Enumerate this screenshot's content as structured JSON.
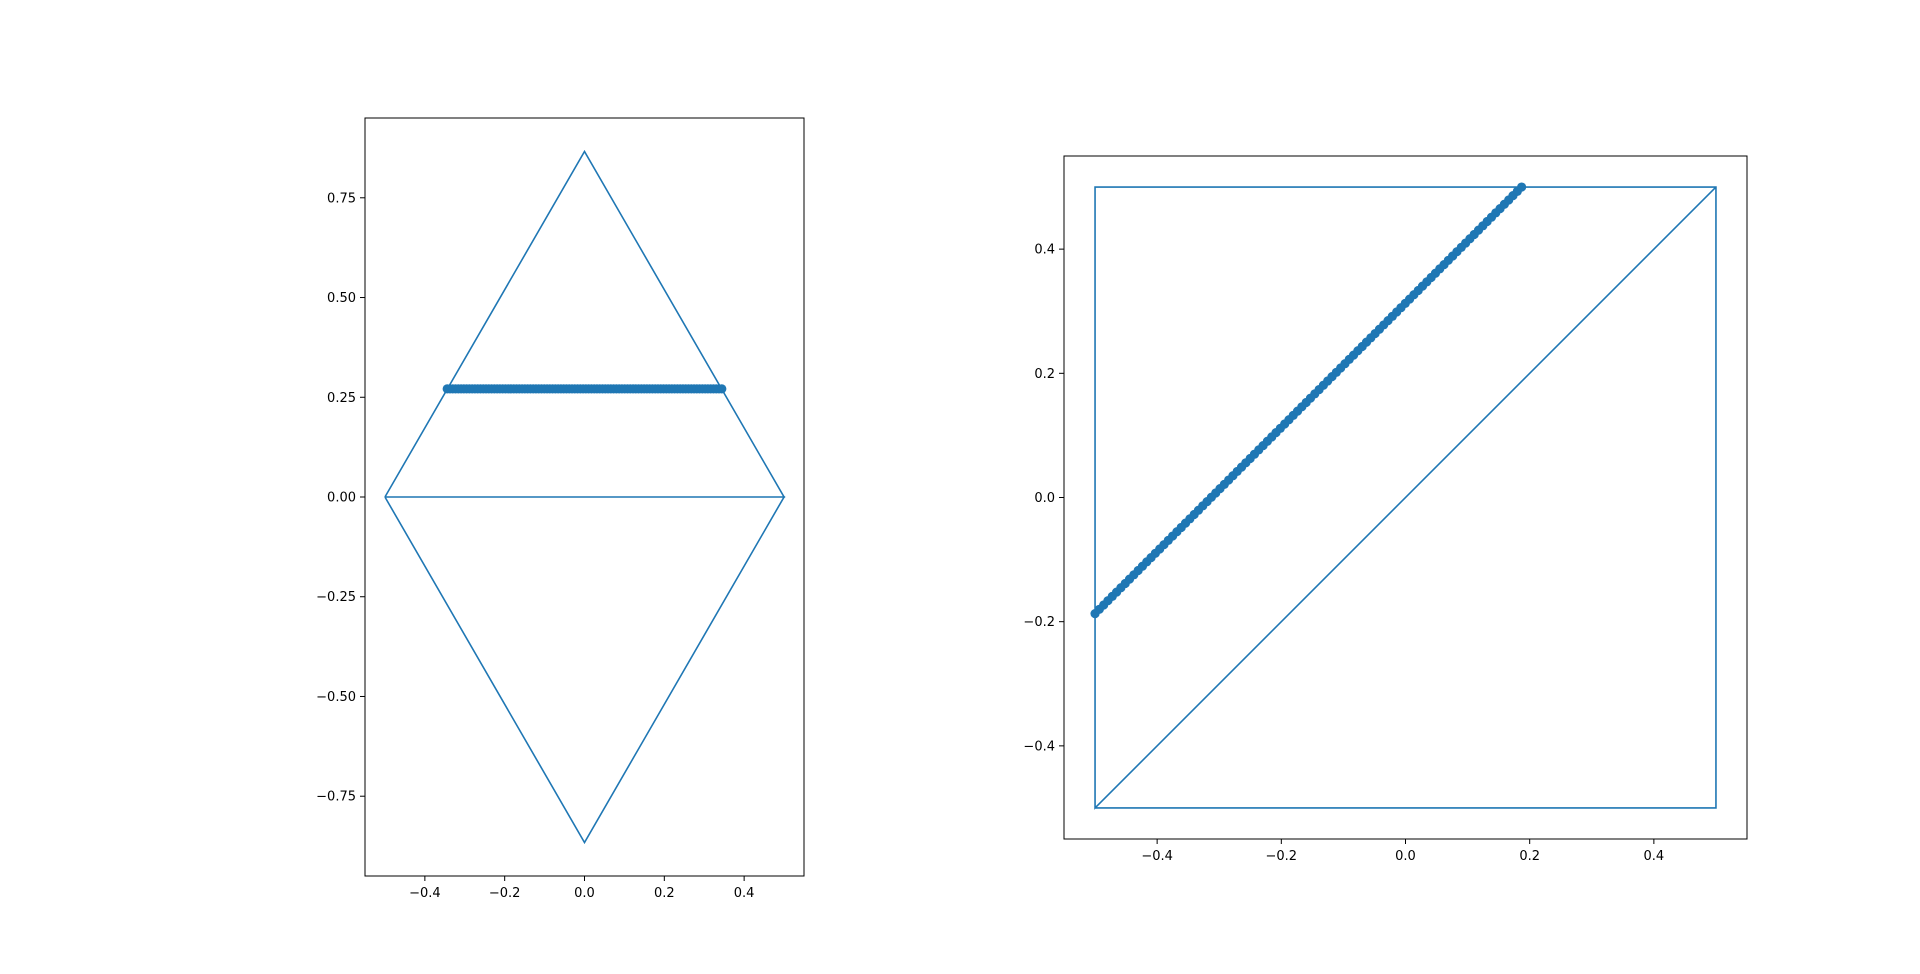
{
  "chart_data": [
    {
      "type": "line",
      "xlim": [
        -0.55,
        0.55
      ],
      "ylim": [
        -0.95,
        0.95
      ],
      "x_ticks": [
        -0.4,
        -0.2,
        0.0,
        0.2,
        0.4
      ],
      "x_tick_labels": [
        "−0.4",
        "−0.2",
        "0.0",
        "0.2",
        "0.4"
      ],
      "y_ticks": [
        0.75,
        0.5,
        0.25,
        0.0,
        -0.25,
        -0.5,
        -0.75
      ],
      "y_tick_labels": [
        "0.75",
        "0.50",
        "0.25",
        "0.00",
        "−0.25",
        "−0.50",
        "−0.75"
      ],
      "grid": false,
      "series": [
        {
          "kind": "line",
          "color": "#1f77b4",
          "x": [
            -0.5,
            0.0,
            0.5,
            -0.5,
            0.5,
            0.0,
            -0.5
          ],
          "y": [
            0.0,
            0.866,
            0.0,
            0.0,
            0.0,
            -0.866,
            0.0
          ]
        },
        {
          "kind": "scatter",
          "color": "#1f77b4",
          "x_range": [
            -0.344,
            0.344
          ],
          "y": 0.271,
          "points": 100
        }
      ]
    },
    {
      "type": "line",
      "xlim": [
        -0.55,
        0.55
      ],
      "ylim": [
        -0.55,
        0.55
      ],
      "x_ticks": [
        -0.4,
        -0.2,
        0.0,
        0.2,
        0.4
      ],
      "x_tick_labels": [
        "−0.4",
        "−0.2",
        "0.0",
        "0.2",
        "0.4"
      ],
      "y_ticks": [
        0.4,
        0.2,
        0.0,
        -0.2,
        -0.4
      ],
      "y_tick_labels": [
        "0.4",
        "0.2",
        "0.0",
        "−0.2",
        "−0.4"
      ],
      "grid": false,
      "series": [
        {
          "kind": "line",
          "color": "#1f77b4",
          "x": [
            -0.5,
            0.5,
            0.5,
            -0.5,
            -0.5,
            0.5
          ],
          "y": [
            -0.5,
            -0.5,
            0.5,
            0.5,
            -0.5,
            0.5
          ]
        },
        {
          "kind": "scatter",
          "color": "#1f77b4",
          "x_range": [
            -0.5,
            0.187
          ],
          "y_range": [
            -0.187,
            0.5
          ],
          "points": 100
        }
      ]
    }
  ]
}
